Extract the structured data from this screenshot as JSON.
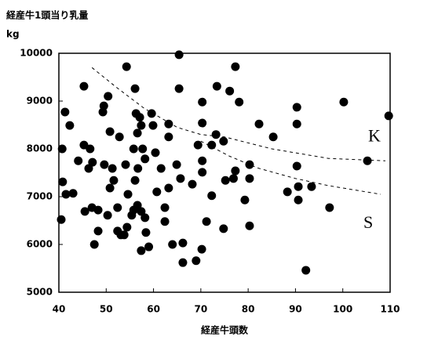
{
  "chart_data": {
    "type": "scatter",
    "title": "経産牛1頭当り乳量",
    "y_label": "kg",
    "x_label": "経産牛頭数",
    "color": "#000000",
    "xlim": [
      40,
      110
    ],
    "xticks": [
      40,
      50,
      60,
      70,
      80,
      90,
      100,
      110
    ],
    "ylim": [
      5000,
      10000
    ],
    "yticks": [
      5000,
      6000,
      7000,
      8000,
      9000,
      10000
    ],
    "x": [
      40.7,
      41.3,
      42.3,
      40.8,
      41.5,
      43,
      40.5,
      44.1,
      45.3,
      45.3,
      46.3,
      46.6,
      45.5,
      47,
      47.1,
      47.5,
      48.3,
      48.3,
      49.3,
      49.5,
      50.4,
      50.8,
      49.6,
      51.3,
      50.8,
      50.3,
      51.6,
      52.4,
      52.4,
      53.1,
      52.8,
      54.3,
      54.1,
      54.6,
      54.4,
      53.8,
      55.4,
      55.8,
      56.1,
      56.3,
      56.6,
      57.1,
      57.4,
      57.7,
      58.2,
      56.7,
      56.1,
      56.6,
      55.8,
      57.4,
      58.2,
      58.4,
      57.4,
      59,
      59.6,
      59.9,
      60.4,
      61.6,
      60.7,
      62.4,
      62.4,
      63.2,
      63.2,
      63.2,
      64,
      65.4,
      65.4,
      64.9,
      65.7,
      66.2,
      66.2,
      68.2,
      69,
      69.4,
      70.3,
      70.3,
      70.3,
      70.3,
      70.2,
      71.2,
      72.3,
      72.3,
      73.2,
      73.4,
      74.8,
      75.2,
      74.8,
      76.1,
      76.9,
      77.3,
      77.3,
      78.1,
      79.3,
      80.3,
      80.3,
      80.3,
      82.3,
      85.3,
      88.3,
      90.3,
      90.3,
      90.3,
      90.6,
      90.6,
      92.2,
      93.4,
      97.2,
      100.2,
      105.2,
      109.7
    ],
    "values": [
      8000,
      8770,
      8490,
      7310,
      7050,
      7070,
      6520,
      7750,
      9310,
      8080,
      7590,
      8000,
      6690,
      6770,
      7720,
      6000,
      6720,
      6280,
      8770,
      8900,
      9100,
      8360,
      7670,
      7590,
      7180,
      6610,
      7340,
      6770,
      6280,
      6200,
      8250,
      9720,
      7670,
      7050,
      6360,
      6200,
      6610,
      8000,
      9260,
      8740,
      8330,
      8660,
      8490,
      8000,
      7790,
      7590,
      7340,
      6820,
      6720,
      6690,
      6560,
      6250,
      5870,
      5950,
      8740,
      8490,
      7920,
      7590,
      7100,
      6770,
      6480,
      7180,
      8520,
      8250,
      6000,
      9260,
      9970,
      7670,
      7380,
      6030,
      5620,
      7260,
      5660,
      8080,
      8540,
      8980,
      7750,
      7510,
      5900,
      6480,
      7020,
      8080,
      8300,
      9310,
      8160,
      7340,
      6330,
      9210,
      7380,
      9720,
      7540,
      8980,
      6930,
      7380,
      7670,
      6390,
      8520,
      8250,
      7100,
      8520,
      8870,
      7640,
      7210,
      6930,
      5460,
      7210,
      6770,
      8980,
      7750,
      8690
    ],
    "curves": [
      {
        "name": "K",
        "x": [
          47,
          52,
          58,
          65,
          70,
          75,
          85,
          97,
          109
        ],
        "values": [
          9700,
          9300,
          8850,
          8450,
          8300,
          8250,
          8000,
          7800,
          7750
        ]
      },
      {
        "name": "S",
        "x": [
          70,
          76,
          82,
          90,
          97,
          108
        ],
        "values": [
          8160,
          7850,
          7600,
          7380,
          7230,
          7050
        ]
      }
    ]
  }
}
